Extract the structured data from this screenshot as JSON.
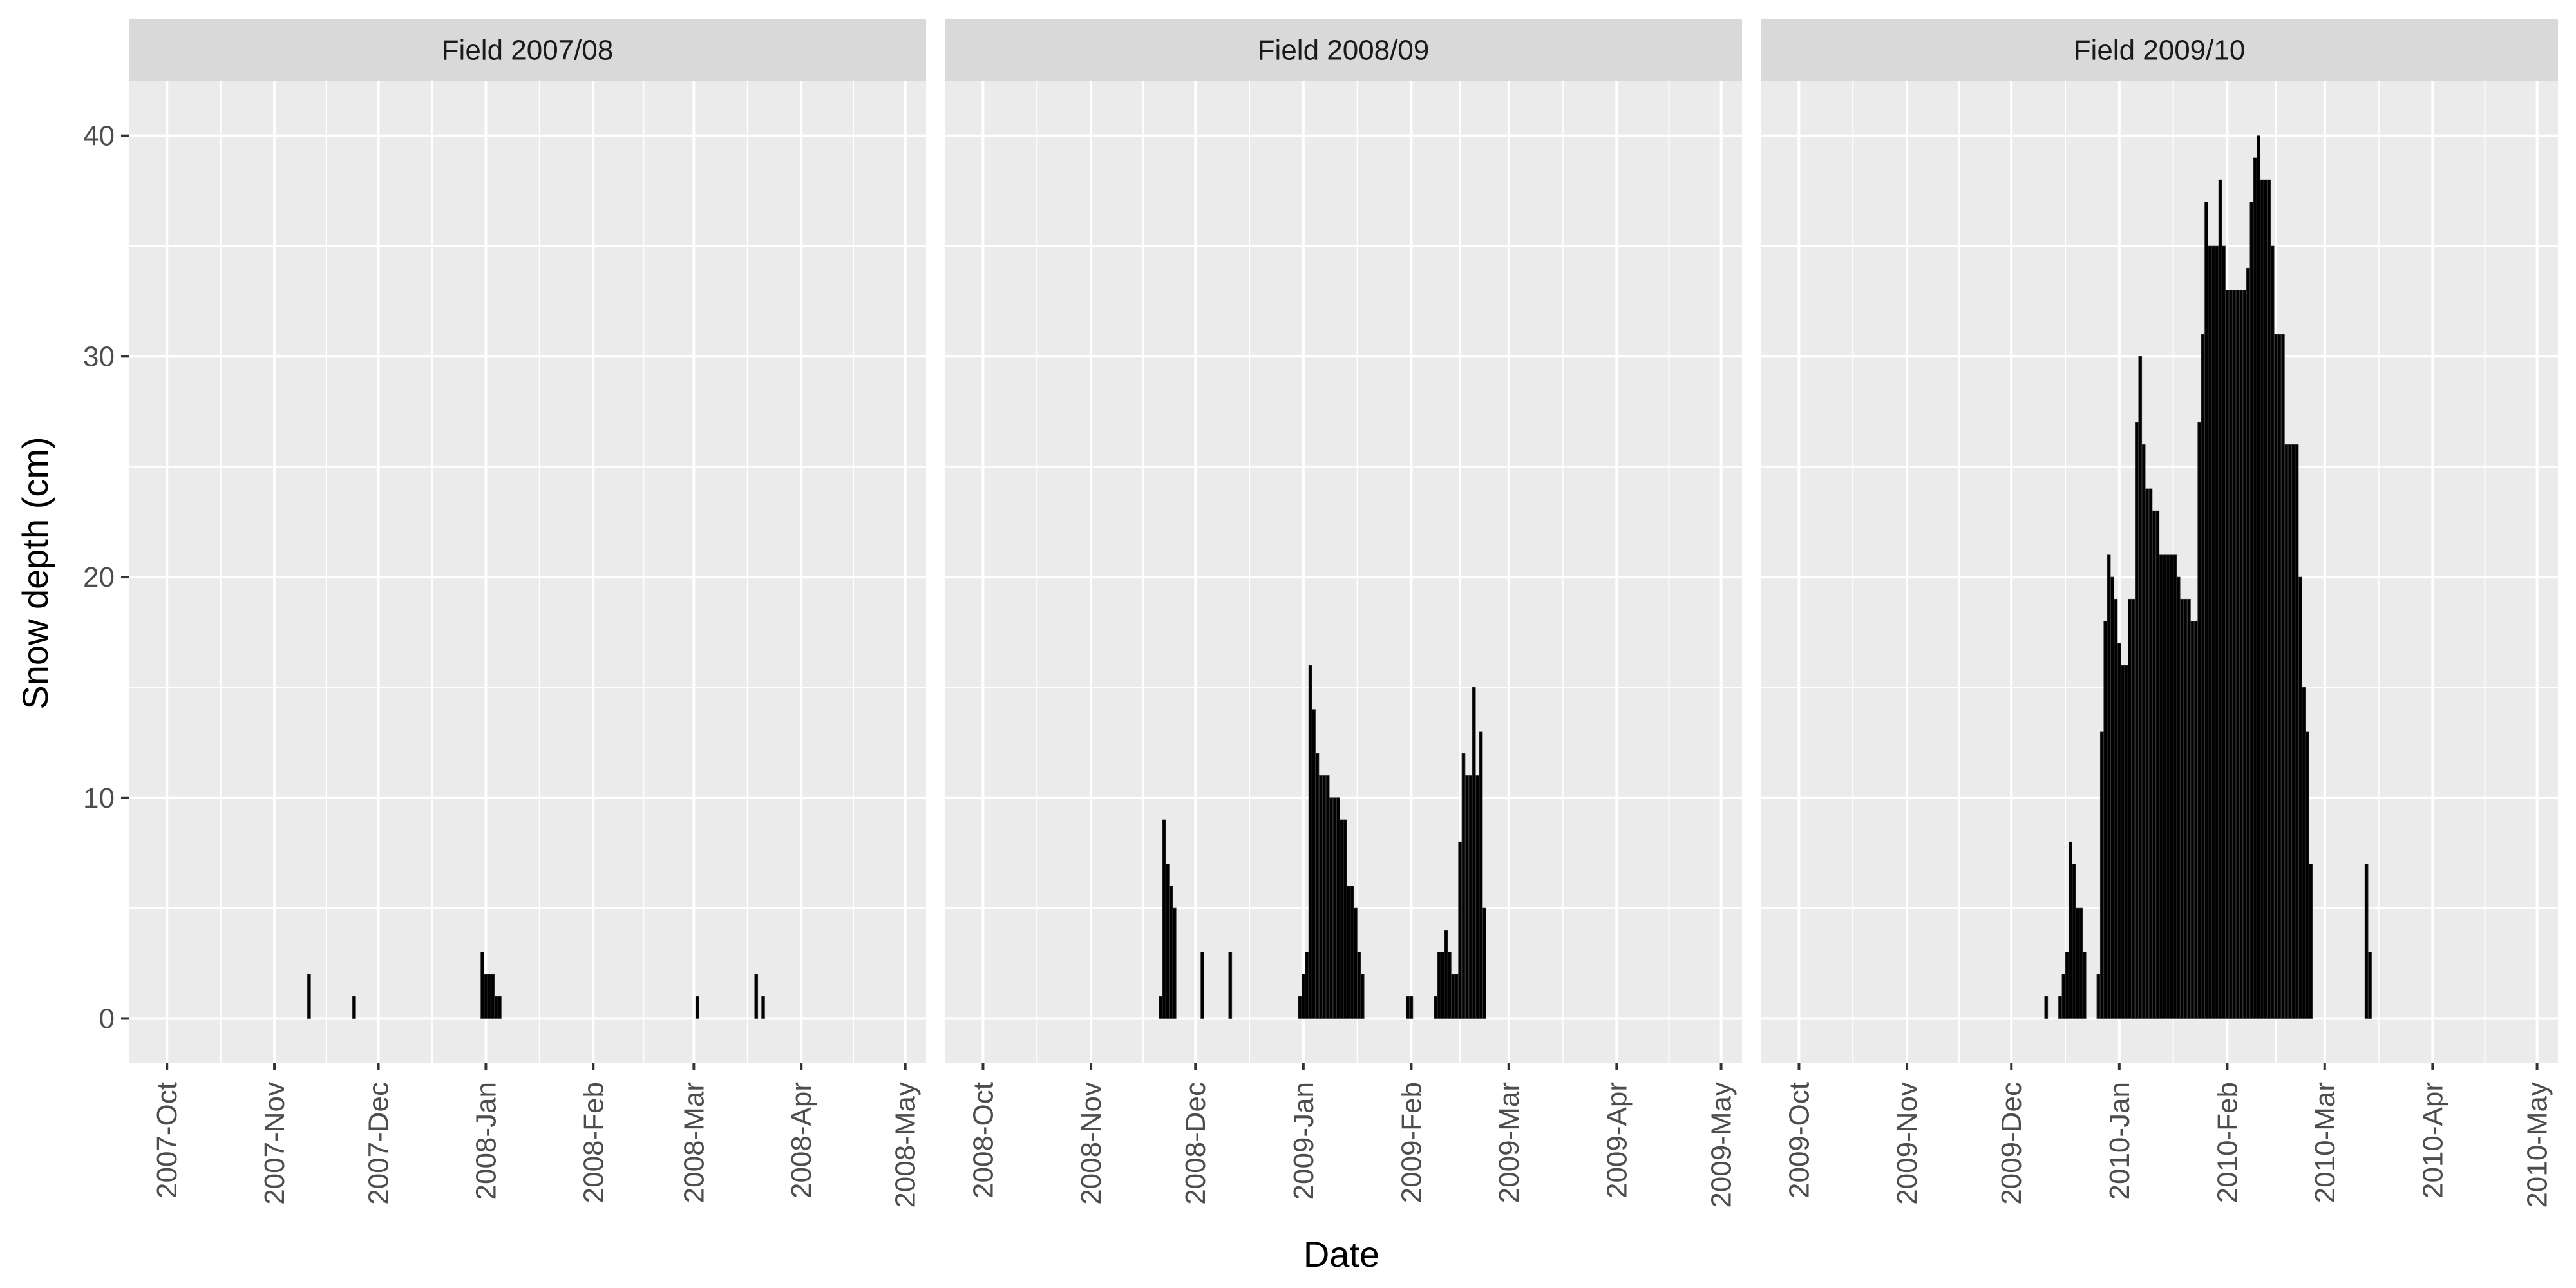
{
  "chart_data": {
    "type": "bar",
    "xlabel": "Date",
    "ylabel": "Snow depth (cm)",
    "ylim": [
      -2,
      42.5
    ],
    "y_ticks": [
      0,
      10,
      20,
      30,
      40
    ],
    "grid": true,
    "colors": {
      "panel_bg": "#EBEBEB",
      "strip_bg": "#D9D9D9",
      "grid": "#FFFFFF",
      "bar": "#000000",
      "bar_edge": "#333333"
    },
    "panels": [
      {
        "strip": "Field 2007/08",
        "x_range": [
          "2007-09-20",
          "2008-05-07"
        ],
        "x_ticks": [
          "2007-10-01",
          "2007-11-01",
          "2007-12-01",
          "2008-01-01",
          "2008-02-01",
          "2008-03-01",
          "2008-04-01",
          "2008-05-01"
        ],
        "x_tick_labels": [
          "2007-Oct",
          "2007-Nov",
          "2007-Dec",
          "2008-Jan",
          "2008-Feb",
          "2008-Mar",
          "2008-Apr",
          "2008-May"
        ],
        "points": [
          [
            "2007-11-11",
            2
          ],
          [
            "2007-11-24",
            1
          ],
          [
            "2007-12-31",
            3
          ],
          [
            "2008-01-01",
            2
          ],
          [
            "2008-01-02",
            2
          ],
          [
            "2008-01-03",
            2
          ],
          [
            "2008-01-04",
            1
          ],
          [
            "2008-01-05",
            1
          ],
          [
            "2008-03-02",
            1
          ],
          [
            "2008-03-19",
            2
          ],
          [
            "2008-03-21",
            1
          ]
        ]
      },
      {
        "strip": "Field 2008/09",
        "x_range": [
          "2008-09-20",
          "2009-05-07"
        ],
        "x_ticks": [
          "2008-10-01",
          "2008-11-01",
          "2008-12-01",
          "2009-01-01",
          "2009-02-01",
          "2009-03-01",
          "2009-04-01",
          "2009-05-01"
        ],
        "x_tick_labels": [
          "2008-Oct",
          "2008-Nov",
          "2008-Dec",
          "2009-Jan",
          "2009-Feb",
          "2009-Mar",
          "2009-Apr",
          "2009-May"
        ],
        "points": [
          [
            "2008-11-21",
            1
          ],
          [
            "2008-11-22",
            9
          ],
          [
            "2008-11-23",
            7
          ],
          [
            "2008-11-24",
            6
          ],
          [
            "2008-11-25",
            5
          ],
          [
            "2008-12-03",
            3
          ],
          [
            "2008-12-11",
            3
          ],
          [
            "2008-12-31",
            1
          ],
          [
            "2009-01-01",
            2
          ],
          [
            "2009-01-02",
            3
          ],
          [
            "2009-01-03",
            16
          ],
          [
            "2009-01-04",
            14
          ],
          [
            "2009-01-05",
            12
          ],
          [
            "2009-01-06",
            11
          ],
          [
            "2009-01-07",
            11
          ],
          [
            "2009-01-08",
            11
          ],
          [
            "2009-01-09",
            10
          ],
          [
            "2009-01-10",
            10
          ],
          [
            "2009-01-11",
            10
          ],
          [
            "2009-01-12",
            9
          ],
          [
            "2009-01-13",
            9
          ],
          [
            "2009-01-14",
            6
          ],
          [
            "2009-01-15",
            6
          ],
          [
            "2009-01-16",
            5
          ],
          [
            "2009-01-17",
            3
          ],
          [
            "2009-01-18",
            2
          ],
          [
            "2009-01-31",
            1
          ],
          [
            "2009-02-01",
            1
          ],
          [
            "2009-02-08",
            1
          ],
          [
            "2009-02-09",
            3
          ],
          [
            "2009-02-10",
            3
          ],
          [
            "2009-02-11",
            4
          ],
          [
            "2009-02-12",
            3
          ],
          [
            "2009-02-13",
            2
          ],
          [
            "2009-02-14",
            2
          ],
          [
            "2009-02-15",
            8
          ],
          [
            "2009-02-16",
            12
          ],
          [
            "2009-02-17",
            11
          ],
          [
            "2009-02-18",
            11
          ],
          [
            "2009-02-19",
            15
          ],
          [
            "2009-02-20",
            11
          ],
          [
            "2009-02-21",
            13
          ],
          [
            "2009-02-22",
            5
          ]
        ]
      },
      {
        "strip": "Field 2009/10",
        "x_range": [
          "2009-09-20",
          "2010-05-07"
        ],
        "x_ticks": [
          "2009-10-01",
          "2009-11-01",
          "2009-12-01",
          "2010-01-01",
          "2010-02-01",
          "2010-03-01",
          "2010-04-01",
          "2010-05-01"
        ],
        "x_tick_labels": [
          "2009-Oct",
          "2009-Nov",
          "2009-Dec",
          "2010-Jan",
          "2010-Feb",
          "2010-Mar",
          "2010-Apr",
          "2010-May"
        ],
        "points": [
          [
            "2009-12-11",
            1
          ],
          [
            "2009-12-15",
            1
          ],
          [
            "2009-12-16",
            2
          ],
          [
            "2009-12-17",
            3
          ],
          [
            "2009-12-18",
            8
          ],
          [
            "2009-12-19",
            7
          ],
          [
            "2009-12-20",
            5
          ],
          [
            "2009-12-21",
            5
          ],
          [
            "2009-12-22",
            3
          ],
          [
            "2009-12-26",
            2
          ],
          [
            "2009-12-27",
            13
          ],
          [
            "2009-12-28",
            18
          ],
          [
            "2009-12-29",
            21
          ],
          [
            "2009-12-30",
            20
          ],
          [
            "2009-12-31",
            19
          ],
          [
            "2010-01-01",
            17
          ],
          [
            "2010-01-02",
            16
          ],
          [
            "2010-01-03",
            16
          ],
          [
            "2010-01-04",
            19
          ],
          [
            "2010-01-05",
            19
          ],
          [
            "2010-01-06",
            27
          ],
          [
            "2010-01-07",
            30
          ],
          [
            "2010-01-08",
            26
          ],
          [
            "2010-01-09",
            24
          ],
          [
            "2010-01-10",
            24
          ],
          [
            "2010-01-11",
            23
          ],
          [
            "2010-01-12",
            23
          ],
          [
            "2010-01-13",
            21
          ],
          [
            "2010-01-14",
            21
          ],
          [
            "2010-01-15",
            21
          ],
          [
            "2010-01-16",
            21
          ],
          [
            "2010-01-17",
            21
          ],
          [
            "2010-01-18",
            20
          ],
          [
            "2010-01-19",
            19
          ],
          [
            "2010-01-20",
            19
          ],
          [
            "2010-01-21",
            19
          ],
          [
            "2010-01-22",
            18
          ],
          [
            "2010-01-23",
            18
          ],
          [
            "2010-01-24",
            27
          ],
          [
            "2010-01-25",
            31
          ],
          [
            "2010-01-26",
            37
          ],
          [
            "2010-01-27",
            35
          ],
          [
            "2010-01-28",
            35
          ],
          [
            "2010-01-29",
            35
          ],
          [
            "2010-01-30",
            38
          ],
          [
            "2010-01-31",
            35
          ],
          [
            "2010-02-01",
            33
          ],
          [
            "2010-02-02",
            33
          ],
          [
            "2010-02-03",
            33
          ],
          [
            "2010-02-04",
            33
          ],
          [
            "2010-02-05",
            33
          ],
          [
            "2010-02-06",
            33
          ],
          [
            "2010-02-07",
            34
          ],
          [
            "2010-02-08",
            37
          ],
          [
            "2010-02-09",
            39
          ],
          [
            "2010-02-10",
            40
          ],
          [
            "2010-02-11",
            38
          ],
          [
            "2010-02-12",
            38
          ],
          [
            "2010-02-13",
            38
          ],
          [
            "2010-02-14",
            35
          ],
          [
            "2010-02-15",
            31
          ],
          [
            "2010-02-16",
            31
          ],
          [
            "2010-02-17",
            31
          ],
          [
            "2010-02-18",
            26
          ],
          [
            "2010-02-19",
            26
          ],
          [
            "2010-02-20",
            26
          ],
          [
            "2010-02-21",
            26
          ],
          [
            "2010-02-22",
            20
          ],
          [
            "2010-02-23",
            15
          ],
          [
            "2010-02-24",
            13
          ],
          [
            "2010-02-25",
            7
          ],
          [
            "2010-03-13",
            7
          ],
          [
            "2010-03-14",
            3
          ]
        ]
      }
    ]
  }
}
